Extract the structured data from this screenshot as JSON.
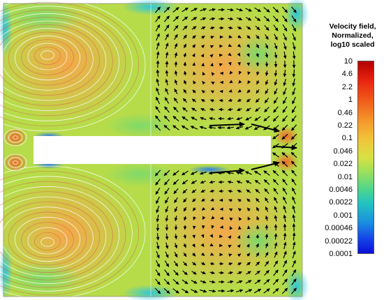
{
  "colorbar": {
    "title_lines": [
      "Velocity field,",
      "Normalized,",
      "log10 scaled"
    ],
    "ticks": [
      "10",
      "4.6",
      "2.2",
      "1",
      "0.46",
      "0.22",
      "0.1",
      "0.046",
      "0.022",
      "0.01",
      "0.0046",
      "0.0022",
      "0.001",
      "0.00046",
      "0.00022",
      "0.0001"
    ],
    "scale": "log10",
    "range": [
      0.0001,
      10
    ],
    "colors": [
      "#b40000",
      "#f05a18",
      "#f2c23a",
      "#98e05c",
      "#22c3c0",
      "#1448e8",
      "#0a10d8"
    ]
  },
  "field": {
    "left_half": "streamlines",
    "right_half": "velocity arrows",
    "obstacle": "white rectangular plate"
  }
}
